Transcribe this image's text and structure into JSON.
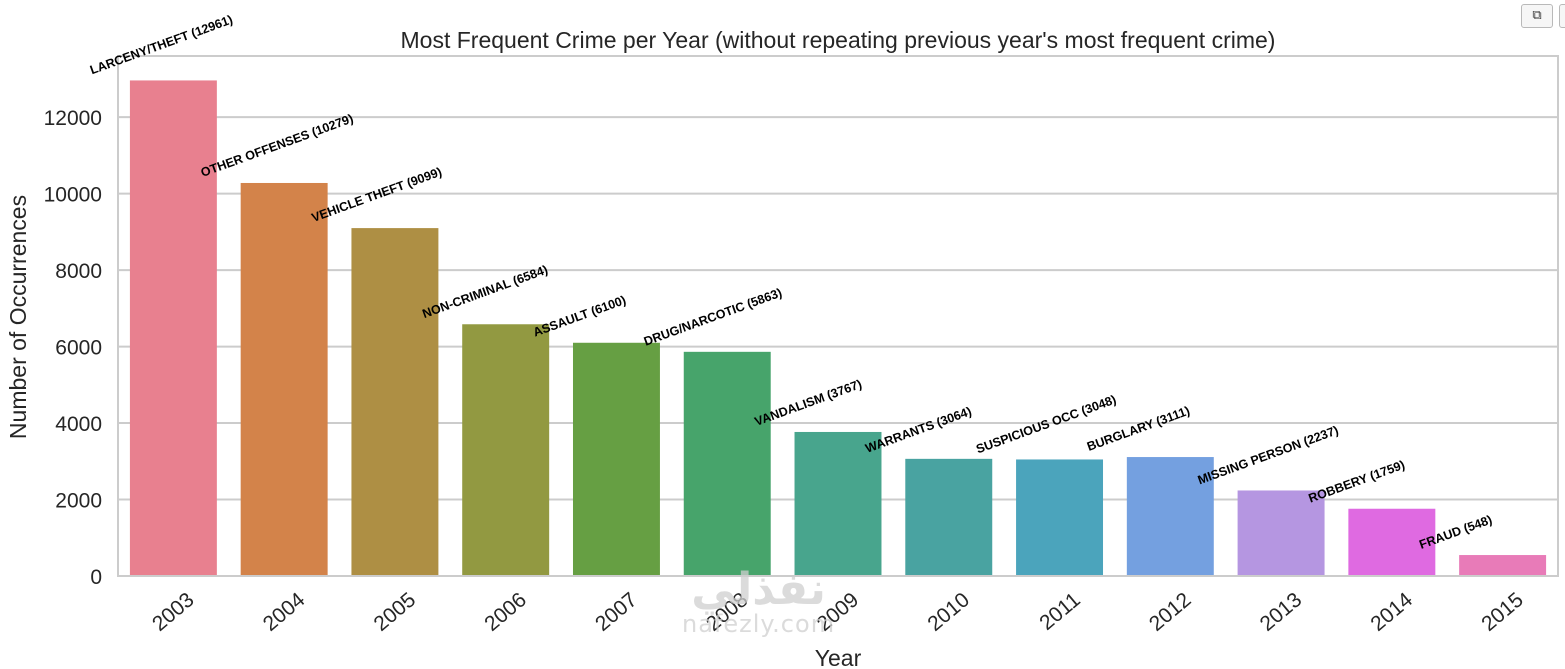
{
  "chart_data": {
    "type": "bar",
    "title": "Most Frequent Crime per Year (without repeating previous year's most frequent crime)",
    "xlabel": "Year",
    "ylabel": "Number of Occurrences",
    "categories": [
      "2003",
      "2004",
      "2005",
      "2006",
      "2007",
      "2008",
      "2009",
      "2010",
      "2011",
      "2012",
      "2013",
      "2014",
      "2015"
    ],
    "values": [
      12961,
      10279,
      9099,
      6584,
      6100,
      5863,
      3767,
      3064,
      3048,
      3111,
      2237,
      1759,
      548
    ],
    "bar_labels": [
      "LARCENY/THEFT (12961)",
      "OTHER OFFENSES (10279)",
      "VEHICLE THEFT (9099)",
      "NON-CRIMINAL (6584)",
      "ASSAULT (6100)",
      "DRUG/NARCOTIC (5863)",
      "VANDALISM (3767)",
      "WARRANTS (3064)",
      "SUSPICIOUS OCC (3048)",
      "BURGLARY (3111)",
      "MISSING PERSON (2237)",
      "ROBBERY (1759)",
      "FRAUD (548)"
    ],
    "colors": [
      "#e8808f",
      "#d3834a",
      "#ae8f44",
      "#929941",
      "#669f43",
      "#47a46b",
      "#48a58d",
      "#49a3a1",
      "#4ba4bc",
      "#74a0e0",
      "#b596e1",
      "#df6ae1",
      "#e87bb8"
    ],
    "yticks": [
      0,
      2000,
      4000,
      6000,
      8000,
      10000,
      12000
    ],
    "ylim": [
      0,
      13600
    ],
    "grid": true,
    "legend": "none"
  },
  "toolbar": {
    "copy_icon": "⧉"
  },
  "watermark": {
    "arabic": "نفذلي",
    "latin": "nafezly.com"
  }
}
